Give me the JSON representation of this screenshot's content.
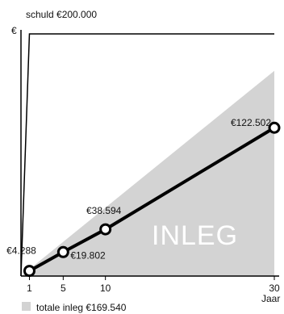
{
  "chart_data": {
    "type": "line",
    "title": "",
    "debt_label": "schuld €200.000",
    "ylabel": "€",
    "xlabel": "Jaar",
    "x_ticks": [
      1,
      5,
      10,
      30
    ],
    "xlim": [
      0,
      30
    ],
    "ylim": [
      0,
      200000
    ],
    "grid": false,
    "debt_series": {
      "x": [
        0,
        1,
        30
      ],
      "values": [
        0,
        200000,
        200000
      ]
    },
    "area_series": {
      "x": [
        0,
        30
      ],
      "values": [
        0,
        169540
      ]
    },
    "series": [
      {
        "x": [
          1,
          5,
          10,
          30
        ],
        "values": [
          4288,
          19802,
          38594,
          122502
        ],
        "labels": [
          "€4.288",
          "€19.802",
          "€38.594",
          "€122.502"
        ]
      }
    ],
    "area_text": "INLEG",
    "legend": {
      "position": "bottom-left",
      "label": "totale inleg €169.540"
    },
    "colors": {
      "area": "#d3d3d3",
      "line": "#000000",
      "marker_fill": "#ffffff",
      "text": "#111111"
    }
  }
}
